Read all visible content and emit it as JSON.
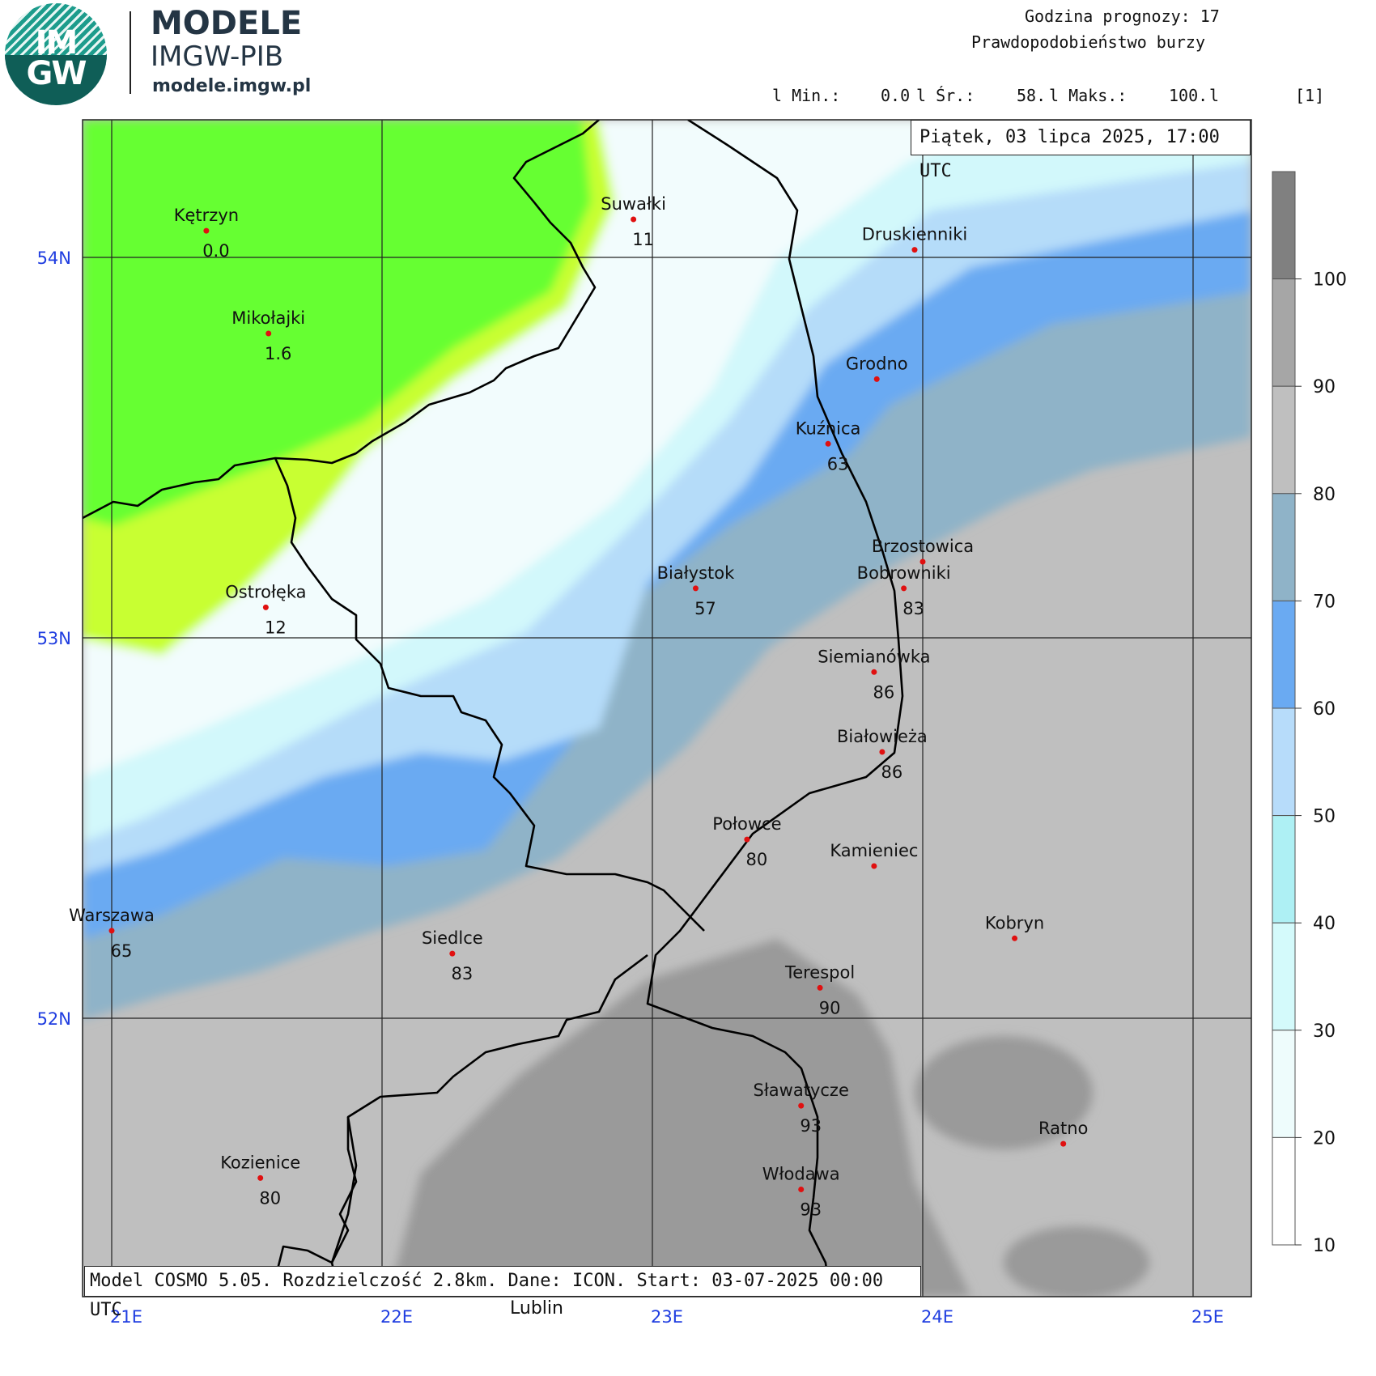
{
  "logo": {
    "letters_top": "IM",
    "letters_bottom": "GW",
    "title": "MODELE",
    "subtitle": "IMGW-PIB",
    "url": "modele.imgw.pl"
  },
  "header": {
    "forecast_hour_label": "Godzina prognozy: 17",
    "parameter": "Prawdopodobieństwo burzy",
    "stats": {
      "min_label": "l Min.:",
      "min": "0.0",
      "avg_label": "l Śr.:",
      "avg": "58.",
      "max_label": "l Maks.:",
      "max": "100.",
      "sep": "l",
      "unit": "[1]"
    }
  },
  "date_box": "Piątek, 03 lipca 2025, 17:00 UTC",
  "model_info": "Model COSMO 5.05. Rozdzielczość 2.8km. Dane: ICON. Start: 03-07-2025 00:00 UTC",
  "outside_label": "Lublin",
  "axes": {
    "lat_labels": [
      "54N",
      "53N",
      "52N"
    ],
    "lon_labels": [
      "21E",
      "22E",
      "23E",
      "24E",
      "25E"
    ]
  },
  "colorbar": {
    "ticks": [
      "100",
      "90",
      "80",
      "70",
      "60",
      "50",
      "40",
      "30",
      "20",
      "10"
    ],
    "colors": [
      "#808080",
      "#a6a6a6",
      "#bfbfbf",
      "#8fb3c8",
      "#6aaaf2",
      "#b7dcfa",
      "#aef0f4",
      "#d4fafb",
      "#eefcfc",
      "#ffffff"
    ]
  },
  "field_colors": {
    "green_dark": "#66ff33",
    "green_light": "#c8ff33",
    "white": "#f2fcfd",
    "cyan": "#d2f8fb",
    "lightblue": "#b5dcf9",
    "blue": "#6aaaf2",
    "steel": "#8fb3c8",
    "gray": "#bfbfbf",
    "darkgray": "#9a9a9a"
  },
  "cities": [
    {
      "name": "Kętrzyn",
      "value": "0.0",
      "lon": 21.35,
      "lat": 54.07
    },
    {
      "name": "Suwałki",
      "value": "11",
      "lon": 22.93,
      "lat": 54.1
    },
    {
      "name": "Druskienniki",
      "value": "",
      "lon": 23.97,
      "lat": 54.02
    },
    {
      "name": "Mikołajki",
      "value": "1.6",
      "lon": 21.58,
      "lat": 53.8
    },
    {
      "name": "Grodno",
      "value": "",
      "lon": 23.83,
      "lat": 53.68
    },
    {
      "name": "Kuźnica",
      "value": "63",
      "lon": 23.65,
      "lat": 53.51
    },
    {
      "name": "Brzostowica",
      "value": "",
      "lon": 24.0,
      "lat": 53.2
    },
    {
      "name": "Bobrowniki",
      "value": "83",
      "lon": 23.93,
      "lat": 53.13
    },
    {
      "name": "Ostrołęka",
      "value": "12",
      "lon": 21.57,
      "lat": 53.08
    },
    {
      "name": "Białystok",
      "value": "57",
      "lon": 23.16,
      "lat": 53.13
    },
    {
      "name": "Siemianówka",
      "value": "86",
      "lon": 23.82,
      "lat": 52.91
    },
    {
      "name": "Białowieża",
      "value": "86",
      "lon": 23.85,
      "lat": 52.7
    },
    {
      "name": "Połowce",
      "value": "80",
      "lon": 23.35,
      "lat": 52.47
    },
    {
      "name": "Kamieniec",
      "value": "",
      "lon": 23.82,
      "lat": 52.4
    },
    {
      "name": "Kobryn",
      "value": "",
      "lon": 24.34,
      "lat": 52.21
    },
    {
      "name": "Warszawa",
      "value": "65",
      "lon": 21.0,
      "lat": 52.23
    },
    {
      "name": "Siedlce",
      "value": "83",
      "lon": 22.26,
      "lat": 52.17
    },
    {
      "name": "Terespol",
      "value": "90",
      "lon": 23.62,
      "lat": 52.08
    },
    {
      "name": "Sławatycze",
      "value": "93",
      "lon": 23.55,
      "lat": 51.77
    },
    {
      "name": "Ratno",
      "value": "",
      "lon": 24.52,
      "lat": 51.67
    },
    {
      "name": "Kozienice",
      "value": "80",
      "lon": 21.55,
      "lat": 51.58
    },
    {
      "name": "Włodawa",
      "value": "93",
      "lon": 23.55,
      "lat": 51.55
    }
  ]
}
